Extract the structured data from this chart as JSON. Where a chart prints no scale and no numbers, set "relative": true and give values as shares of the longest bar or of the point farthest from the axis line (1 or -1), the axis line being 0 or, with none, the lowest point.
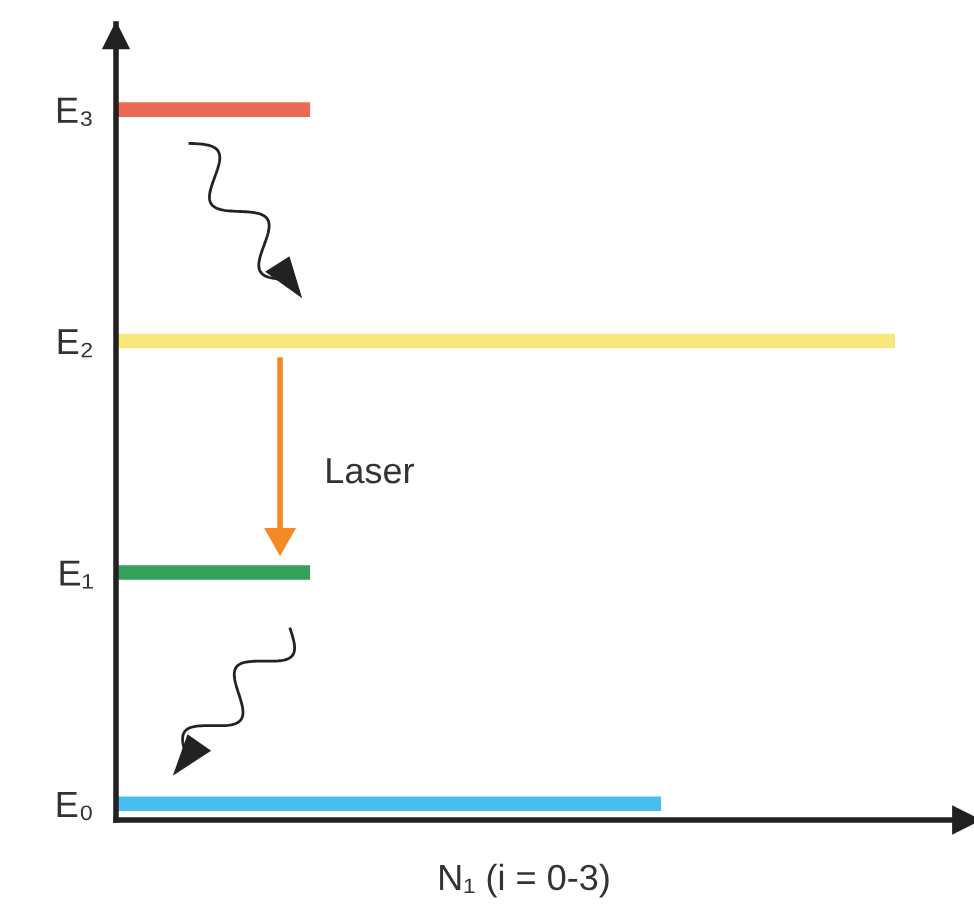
{
  "chart_data": {
    "type": "bar",
    "orientation": "horizontal",
    "relative": true,
    "xlabel": "N₁ (i = 0-3)",
    "categories": [
      "E₃",
      "E₂",
      "E₁",
      "E₀"
    ],
    "values": [
      0.25,
      1,
      0.25,
      0.7
    ],
    "colors": [
      "#ec6a55",
      "#f7e67a",
      "#34a05a",
      "#48bdf0"
    ],
    "annotations": [
      "Laser"
    ]
  }
}
